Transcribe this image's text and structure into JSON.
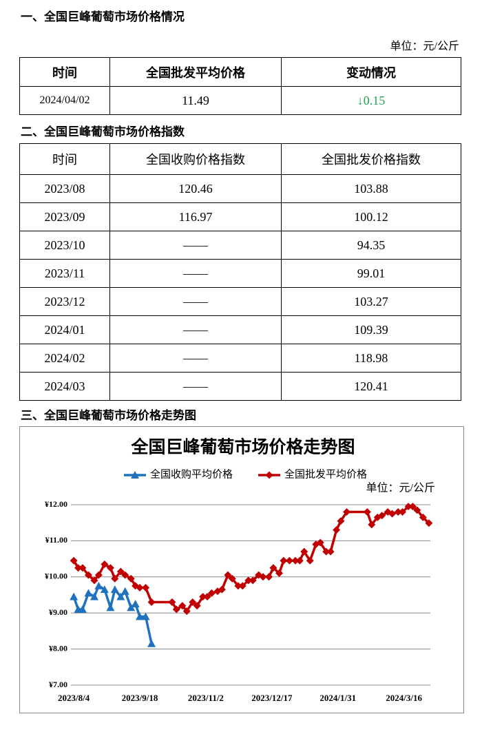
{
  "section1": {
    "heading": "一、全国巨峰葡萄市场价格情况",
    "unit": "单位：元/公斤",
    "table": {
      "header": [
        "时间",
        "全国批发平均价格",
        "变动情况"
      ],
      "rows": [
        [
          "2024/04/02",
          "11.49",
          "↓0.15"
        ]
      ]
    }
  },
  "section2": {
    "heading": "二、全国巨峰葡萄市场价格指数",
    "table": {
      "header": [
        "时间",
        "全国收购价格指数",
        "全国批发价格指数"
      ],
      "rows": [
        [
          "2023/08",
          "120.46",
          "103.88"
        ],
        [
          "2023/09",
          "116.97",
          "100.12"
        ],
        [
          "2023/10",
          "——",
          "94.35"
        ],
        [
          "2023/11",
          "——",
          "99.01"
        ],
        [
          "2023/12",
          "——",
          "103.27"
        ],
        [
          "2024/01",
          "——",
          "109.39"
        ],
        [
          "2024/02",
          "——",
          "118.98"
        ],
        [
          "2024/03",
          "——",
          "120.41"
        ]
      ]
    }
  },
  "section3": {
    "heading": "三、全国巨峰葡萄市场价格走势图"
  },
  "chart_data": {
    "type": "line",
    "title": "全国巨峰葡萄市场价格走势图",
    "unit": "单位：元/公斤",
    "x": [
      "2023-08-04",
      "2023-08-07",
      "2023-08-10",
      "2023-08-14",
      "2023-08-18",
      "2023-08-21",
      "2023-08-25",
      "2023-08-29",
      "2023-09-01",
      "2023-09-05",
      "2023-09-08",
      "2023-09-12",
      "2023-09-15",
      "2023-09-18",
      "2023-09-22",
      "2023-09-26",
      "2023-10-10",
      "2023-10-13",
      "2023-10-17",
      "2023-10-20",
      "2023-10-24",
      "2023-10-27",
      "2023-10-31",
      "2023-11-03",
      "2023-11-06",
      "2023-11-10",
      "2023-11-13",
      "2023-11-17",
      "2023-11-20",
      "2023-11-24",
      "2023-11-27",
      "2023-12-01",
      "2023-12-04",
      "2023-12-08",
      "2023-12-11",
      "2023-12-15",
      "2023-12-18",
      "2023-12-22",
      "2023-12-25",
      "2023-12-29",
      "2024-01-02",
      "2024-01-05",
      "2024-01-08",
      "2024-01-12",
      "2024-01-16",
      "2024-01-19",
      "2024-01-23",
      "2024-01-26",
      "2024-01-30",
      "2024-02-02",
      "2024-02-06",
      "2024-02-20",
      "2024-02-23",
      "2024-02-27",
      "2024-03-01",
      "2024-03-05",
      "2024-03-08",
      "2024-03-12",
      "2024-03-15",
      "2024-03-19",
      "2024-03-22",
      "2024-03-25",
      "2024-03-29",
      "2024-04-02"
    ],
    "series": [
      {
        "name": "全国收购平均价格",
        "color": "#1f72bd",
        "marker": "triangle",
        "values": [
          9.45,
          9.1,
          9.1,
          9.55,
          9.45,
          9.75,
          9.65,
          9.15,
          9.65,
          9.45,
          9.6,
          9.15,
          9.25,
          8.9,
          8.9,
          8.15,
          null,
          null,
          null,
          null,
          null,
          null,
          null,
          null,
          null,
          null,
          null,
          null,
          null,
          null,
          null,
          null,
          null,
          null,
          null,
          null,
          null,
          null,
          null,
          null,
          null,
          null,
          null,
          null,
          null,
          null,
          null,
          null,
          null,
          null,
          null,
          null,
          null,
          null,
          null,
          null,
          null,
          null,
          null,
          null,
          null,
          null,
          null,
          null
        ]
      },
      {
        "name": "全国批发平均价格",
        "color": "#c00000",
        "marker": "diamond",
        "values": [
          10.45,
          10.25,
          10.25,
          10.05,
          9.9,
          10.05,
          10.35,
          10.25,
          9.95,
          10.15,
          10.05,
          9.95,
          9.75,
          9.7,
          9.7,
          9.3,
          9.3,
          9.1,
          9.2,
          9.05,
          9.3,
          9.2,
          9.45,
          9.45,
          9.55,
          9.6,
          9.65,
          10.05,
          9.95,
          9.75,
          9.75,
          9.9,
          9.9,
          10.05,
          10.0,
          10.0,
          10.25,
          10.1,
          10.45,
          10.45,
          10.45,
          10.45,
          10.7,
          10.45,
          10.9,
          10.95,
          10.7,
          10.7,
          11.3,
          11.55,
          11.8,
          11.8,
          11.45,
          11.65,
          11.7,
          11.8,
          11.75,
          11.8,
          11.8,
          11.95,
          11.95,
          11.85,
          11.65,
          11.49
        ]
      }
    ],
    "xlim": [
      "2023-08-03",
      "2024-04-03"
    ],
    "xticks": [
      {
        "value": "2023-08-04",
        "label": "2023/8/4"
      },
      {
        "value": "2023-09-18",
        "label": "2023/9/18"
      },
      {
        "value": "2023-11-02",
        "label": "2023/11/2"
      },
      {
        "value": "2023-12-17",
        "label": "2023/12/17"
      },
      {
        "value": "2024-01-31",
        "label": "2024/1/31"
      },
      {
        "value": "2024-03-16",
        "label": "2024/3/16"
      }
    ],
    "ylim": [
      7,
      12
    ],
    "yticks": [
      {
        "value": 7,
        "label": "¥7.00"
      },
      {
        "value": 8,
        "label": "¥8.00"
      },
      {
        "value": 9,
        "label": "¥9.00"
      },
      {
        "value": 10,
        "label": "¥10.00"
      },
      {
        "value": 11,
        "label": "¥11.00"
      },
      {
        "value": 12,
        "label": "¥12.00"
      }
    ],
    "grid": true,
    "legend": "top"
  }
}
